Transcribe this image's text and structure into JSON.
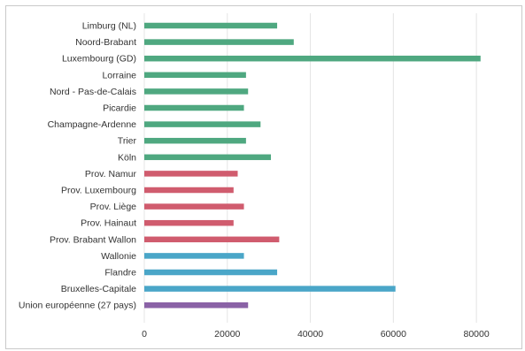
{
  "chart_data": {
    "type": "bar",
    "orientation": "horizontal",
    "title": "",
    "xlabel": "",
    "ylabel": "",
    "xlim": [
      0,
      90000
    ],
    "x_ticks": [
      "0",
      "20000",
      "40000",
      "60000",
      "80000"
    ],
    "grid": true,
    "categories": [
      "Limburg (NL)",
      "Noord-Brabant",
      "Luxembourg (GD)",
      "Lorraine",
      "Nord - Pas-de-Calais",
      "Picardie",
      "Champagne-Ardenne",
      "Trier",
      "Köln",
      "Prov. Namur",
      "Prov. Luxembourg",
      "Prov. Liège",
      "Prov. Hainaut",
      "Prov. Brabant Wallon",
      "Wallonie",
      "Flandre",
      "Bruxelles-Capitale",
      "Union européenne (27 pays)"
    ],
    "values": [
      32000,
      36000,
      81000,
      24500,
      25000,
      24000,
      28000,
      24500,
      30500,
      22500,
      21500,
      24000,
      21500,
      32500,
      24000,
      32000,
      60500,
      25000
    ],
    "colors": [
      "#4fa880",
      "#4fa880",
      "#4fa880",
      "#4fa880",
      "#4fa880",
      "#4fa880",
      "#4fa880",
      "#4fa880",
      "#4fa880",
      "#d05c6e",
      "#d05c6e",
      "#d05c6e",
      "#d05c6e",
      "#d05c6e",
      "#4aa6c8",
      "#4aa6c8",
      "#4aa6c8",
      "#8a62a6"
    ]
  }
}
